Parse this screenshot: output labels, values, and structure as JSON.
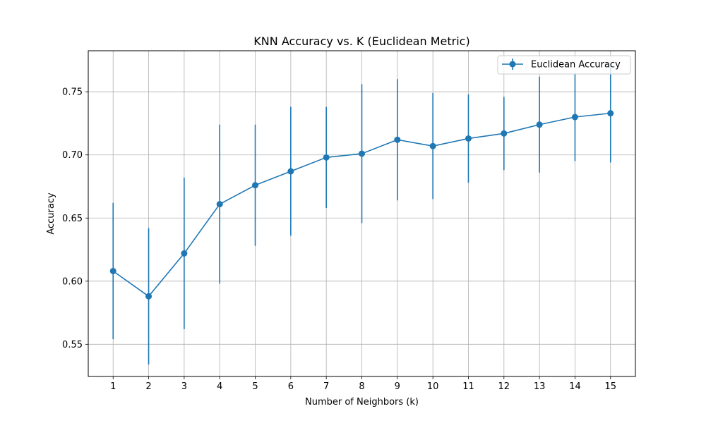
{
  "chart_data": {
    "type": "line",
    "title": "KNN Accuracy vs. K (Euclidean Metric)",
    "xlabel": "Number of Neighbors (k)",
    "ylabel": "Accuracy",
    "x": [
      1,
      2,
      3,
      4,
      5,
      6,
      7,
      8,
      9,
      10,
      11,
      12,
      13,
      14,
      15
    ],
    "xticks": [
      "1",
      "2",
      "3",
      "4",
      "5",
      "6",
      "7",
      "8",
      "9",
      "10",
      "11",
      "12",
      "13",
      "14",
      "15"
    ],
    "yticks": [
      "0.55",
      "0.60",
      "0.65",
      "0.70",
      "0.75"
    ],
    "ytick_values": [
      0.55,
      0.6,
      0.65,
      0.7,
      0.75
    ],
    "xlim": [
      0.3,
      15.7
    ],
    "ylim": [
      0.5245,
      0.7825
    ],
    "grid": true,
    "legend_position": "top-right",
    "series": [
      {
        "name": "Euclidean Accuracy",
        "color": "#1f77b4",
        "marker": "circle",
        "values": [
          0.608,
          0.588,
          0.622,
          0.661,
          0.676,
          0.687,
          0.698,
          0.701,
          0.712,
          0.707,
          0.713,
          0.717,
          0.724,
          0.73,
          0.733
        ],
        "error": [
          0.054,
          0.054,
          0.06,
          0.063,
          0.048,
          0.051,
          0.04,
          0.055,
          0.048,
          0.042,
          0.035,
          0.029,
          0.038,
          0.035,
          0.039
        ]
      }
    ]
  }
}
